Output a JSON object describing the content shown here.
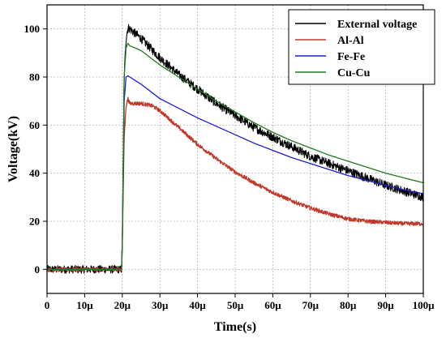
{
  "chart_data": {
    "type": "line",
    "xlabel": "Time(s)",
    "ylabel": "Voltage(kV)",
    "xlim": [
      0,
      100
    ],
    "ylim": [
      -10,
      110
    ],
    "x_ticks": [
      {
        "value": 0,
        "label": "0"
      },
      {
        "value": 10,
        "label": "10μ"
      },
      {
        "value": 20,
        "label": "20μ"
      },
      {
        "value": 30,
        "label": "30μ"
      },
      {
        "value": 40,
        "label": "40μ"
      },
      {
        "value": 50,
        "label": "50μ"
      },
      {
        "value": 60,
        "label": "60μ"
      },
      {
        "value": 70,
        "label": "70μ"
      },
      {
        "value": 80,
        "label": "80μ"
      },
      {
        "value": 90,
        "label": "90μ"
      },
      {
        "value": 100,
        "label": "100μ"
      }
    ],
    "y_ticks": [
      {
        "value": 0,
        "label": "0"
      },
      {
        "value": 20,
        "label": "20"
      },
      {
        "value": 40,
        "label": "40"
      },
      {
        "value": 60,
        "label": "60"
      },
      {
        "value": 80,
        "label": "80"
      },
      {
        "value": 100,
        "label": "100"
      }
    ],
    "grid": true,
    "legend_position": "top-right",
    "series": [
      {
        "name": "External voltage",
        "color": "#000000",
        "noise": 1.8,
        "x": [
          0,
          19.8,
          20.0,
          20.5,
          21.0,
          21.5,
          22,
          25,
          30,
          35,
          40,
          45,
          50,
          55,
          60,
          65,
          70,
          75,
          80,
          85,
          90,
          95,
          100
        ],
        "y": [
          0,
          0,
          10,
          80,
          96,
          100.5,
          100,
          96,
          88,
          81,
          75,
          69,
          64,
          59,
          55,
          51,
          47,
          44,
          41,
          38,
          35,
          32.5,
          30
        ]
      },
      {
        "name": "Al-Al",
        "color": "#c0392b",
        "noise": 0.8,
        "x": [
          0,
          19.8,
          20.0,
          20.5,
          21.0,
          21.5,
          22,
          25,
          28,
          30,
          35,
          40,
          45,
          50,
          55,
          60,
          65,
          70,
          75,
          80,
          85,
          90,
          95,
          100
        ],
        "y": [
          0,
          0,
          10,
          55,
          68,
          71,
          69,
          69,
          68,
          66,
          59,
          52,
          46,
          40.5,
          36,
          32,
          28.5,
          25.5,
          23,
          21,
          20,
          19.5,
          19,
          19
        ]
      },
      {
        "name": "Fe-Fe",
        "color": "#1c1ccf",
        "noise": 0,
        "x": [
          0,
          19.8,
          20.0,
          20.5,
          21.0,
          21.5,
          22,
          25,
          30,
          35,
          40,
          45,
          50,
          55,
          60,
          65,
          70,
          75,
          80,
          85,
          90,
          95,
          100
        ],
        "y": [
          0,
          0,
          10,
          70,
          80,
          80.5,
          80,
          77,
          71,
          67,
          63,
          59.5,
          56,
          52.5,
          49.5,
          46.5,
          44,
          41.5,
          39,
          37,
          35,
          33,
          31.5
        ]
      },
      {
        "name": "Cu-Cu",
        "color": "#1f7a1f",
        "noise": 0,
        "x": [
          0,
          19.8,
          20.0,
          20.5,
          21.0,
          21.5,
          22,
          25,
          30,
          35,
          40,
          45,
          50,
          55,
          60,
          65,
          70,
          75,
          80,
          85,
          90,
          95,
          100
        ],
        "y": [
          0,
          0,
          10,
          80,
          92,
          94,
          93,
          91,
          85,
          80,
          75,
          70,
          65.5,
          61,
          57,
          53.5,
          50.5,
          47.5,
          45,
          42.5,
          40,
          38,
          36
        ]
      }
    ]
  }
}
